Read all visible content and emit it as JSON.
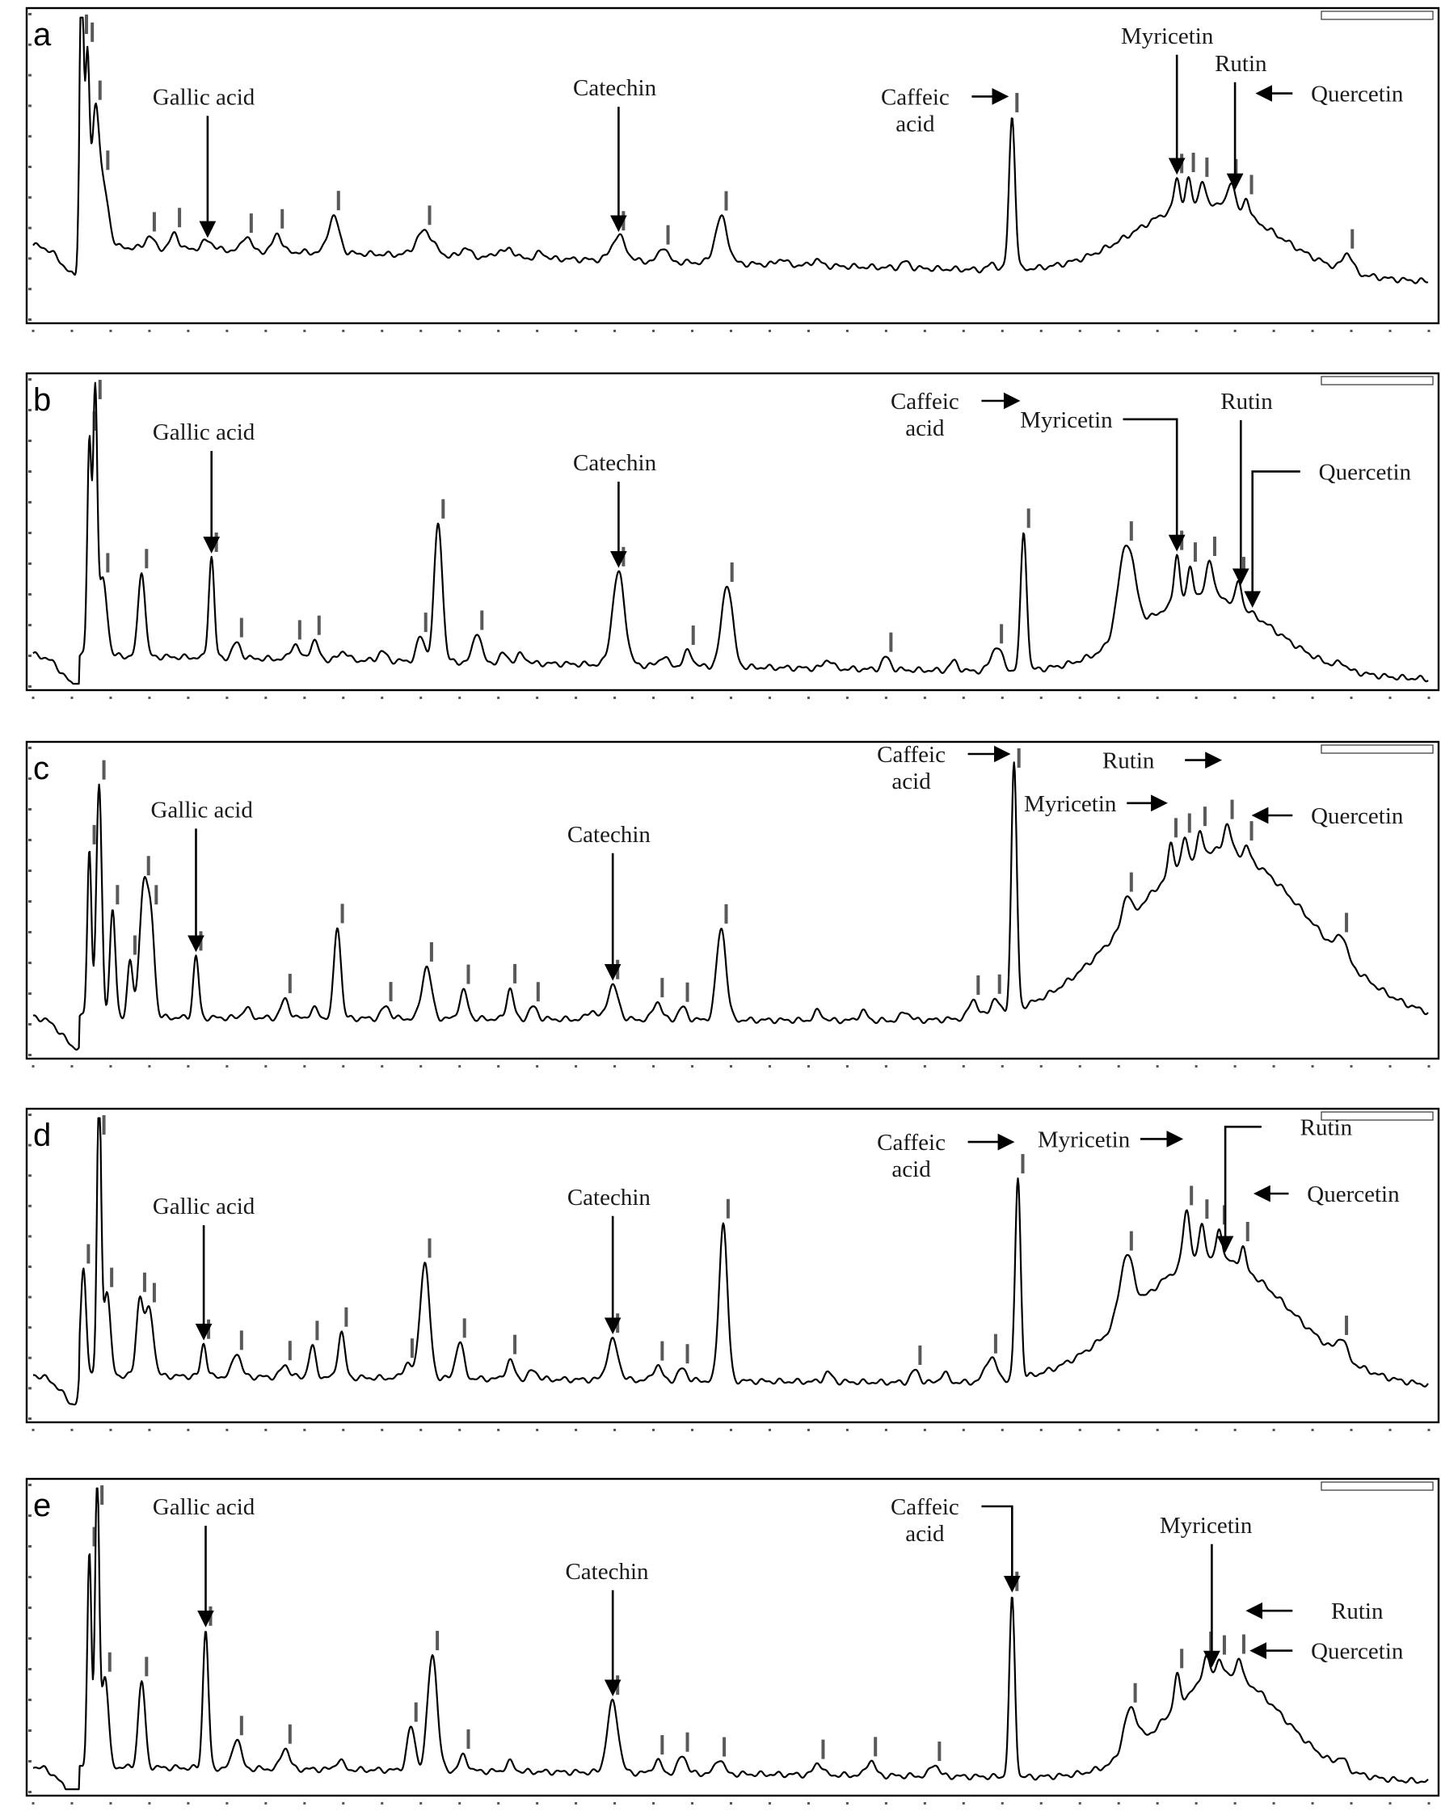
{
  "chart_data": [
    {
      "type": "line",
      "panel": "a",
      "xlim": [
        0,
        72
      ],
      "compounds": [
        {
          "name": "Gallic acid",
          "rt": 9.0,
          "label": [
            "Gallic acid"
          ],
          "lx": 8.8,
          "ly": 0.3,
          "dir": "down"
        },
        {
          "name": "Catechin",
          "rt": 30.2,
          "label": [
            "Catechin"
          ],
          "lx": 30.0,
          "ly": 0.27,
          "dir": "down"
        },
        {
          "name": "Caffeic acid",
          "rt": 50.5,
          "label": [
            "Caffeic",
            "acid"
          ],
          "lx": 45.5,
          "ly": 0.3,
          "dir": "right"
        },
        {
          "name": "Myricetin",
          "rt": 59.0,
          "label": [
            "Myricetin"
          ],
          "lx": 58.5,
          "ly": 0.1,
          "dir": "down"
        },
        {
          "name": "Rutin",
          "rt": 62.0,
          "label": [
            "Rutin"
          ],
          "lx": 62.3,
          "ly": 0.19,
          "dir": "down"
        },
        {
          "name": "Quercetin",
          "rt": 62.8,
          "label": [
            "Quercetin"
          ],
          "lx": 68.3,
          "ly": 0.29,
          "dir": "left"
        }
      ],
      "peaks": [
        {
          "t": 2.5,
          "h": 0.92,
          "w": 0.15
        },
        {
          "t": 2.8,
          "h": 0.6,
          "w": 0.15
        },
        {
          "t": 3.2,
          "h": 0.4,
          "w": 0.25
        },
        {
          "t": 3.6,
          "h": 0.2,
          "w": 0.4
        },
        {
          "t": 6.0,
          "h": 0.04,
          "w": 0.3
        },
        {
          "t": 7.3,
          "h": 0.05,
          "w": 0.3
        },
        {
          "t": 9.0,
          "h": 0.03,
          "w": 0.4
        },
        {
          "t": 11.0,
          "h": 0.05,
          "w": 0.3
        },
        {
          "t": 12.6,
          "h": 0.06,
          "w": 0.3
        },
        {
          "t": 15.5,
          "h": 0.12,
          "w": 0.4
        },
        {
          "t": 20.2,
          "h": 0.08,
          "w": 0.6
        },
        {
          "t": 22.3,
          "h": 0.03,
          "w": 0.3
        },
        {
          "t": 24.0,
          "h": 0.02,
          "w": 0.3
        },
        {
          "t": 24.6,
          "h": 0.03,
          "w": 0.3
        },
        {
          "t": 26.2,
          "h": 0.02,
          "w": 0.3
        },
        {
          "t": 30.2,
          "h": 0.08,
          "w": 0.5
        },
        {
          "t": 32.5,
          "h": 0.05,
          "w": 0.3
        },
        {
          "t": 35.5,
          "h": 0.15,
          "w": 0.45
        },
        {
          "t": 38.6,
          "h": 0.02,
          "w": 0.3
        },
        {
          "t": 40.4,
          "h": 0.02,
          "w": 0.3
        },
        {
          "t": 45.0,
          "h": 0.02,
          "w": 0.3
        },
        {
          "t": 49.5,
          "h": 0.02,
          "w": 0.3
        },
        {
          "t": 50.5,
          "h": 0.5,
          "w": 0.22
        },
        {
          "t": 59.0,
          "h": 0.1,
          "w": 0.2
        },
        {
          "t": 59.6,
          "h": 0.08,
          "w": 0.2
        },
        {
          "t": 60.3,
          "h": 0.07,
          "w": 0.2
        },
        {
          "t": 61.8,
          "h": 0.09,
          "w": 0.25
        },
        {
          "t": 62.6,
          "h": 0.06,
          "w": 0.2
        },
        {
          "t": 67.8,
          "h": 0.06,
          "w": 0.35
        }
      ],
      "hump": {
        "center": 60.5,
        "height": 0.24,
        "width": 5.0
      },
      "drift": {
        "start": 0.24,
        "end": 0.12
      }
    },
    {
      "type": "line",
      "panel": "b",
      "xlim": [
        0,
        72
      ],
      "compounds": [
        {
          "name": "Gallic acid",
          "rt": 9.2,
          "label": [
            "Gallic acid"
          ],
          "lx": 8.8,
          "ly": 0.2,
          "dir": "down"
        },
        {
          "name": "Catechin",
          "rt": 30.2,
          "label": [
            "Catechin"
          ],
          "lx": 30.0,
          "ly": 0.3,
          "dir": "down"
        },
        {
          "name": "Caffeic acid",
          "rt": 51.1,
          "label": [
            "Caffeic",
            "acid"
          ],
          "lx": 46.0,
          "ly": 0.1,
          "dir": "right"
        },
        {
          "name": "Myricetin",
          "rt": 59.0,
          "label": [
            "Myricetin"
          ],
          "lx": 53.3,
          "ly": 0.16,
          "dir": "hook"
        },
        {
          "name": "Rutin",
          "rt": 62.3,
          "label": [
            "Rutin"
          ],
          "lx": 62.6,
          "ly": 0.1,
          "dir": "down"
        },
        {
          "name": "Quercetin",
          "rt": 62.9,
          "label": [
            "Quercetin"
          ],
          "lx": 68.7,
          "ly": 0.33,
          "dir": "hook"
        }
      ],
      "peaks": [
        {
          "t": 2.9,
          "h": 0.7,
          "w": 0.15
        },
        {
          "t": 3.2,
          "h": 0.85,
          "w": 0.15
        },
        {
          "t": 3.6,
          "h": 0.25,
          "w": 0.3
        },
        {
          "t": 5.6,
          "h": 0.28,
          "w": 0.25
        },
        {
          "t": 9.2,
          "h": 0.33,
          "w": 0.2
        },
        {
          "t": 10.5,
          "h": 0.05,
          "w": 0.3
        },
        {
          "t": 13.5,
          "h": 0.05,
          "w": 0.3
        },
        {
          "t": 14.5,
          "h": 0.06,
          "w": 0.3
        },
        {
          "t": 16.0,
          "h": 0.03,
          "w": 0.3
        },
        {
          "t": 18.0,
          "h": 0.03,
          "w": 0.3
        },
        {
          "t": 20.0,
          "h": 0.08,
          "w": 0.3
        },
        {
          "t": 20.9,
          "h": 0.45,
          "w": 0.3
        },
        {
          "t": 22.9,
          "h": 0.1,
          "w": 0.3
        },
        {
          "t": 24.3,
          "h": 0.03,
          "w": 0.3
        },
        {
          "t": 25.2,
          "h": 0.03,
          "w": 0.3
        },
        {
          "t": 30.2,
          "h": 0.3,
          "w": 0.45
        },
        {
          "t": 32.5,
          "h": 0.03,
          "w": 0.3
        },
        {
          "t": 33.8,
          "h": 0.05,
          "w": 0.3
        },
        {
          "t": 35.8,
          "h": 0.27,
          "w": 0.4
        },
        {
          "t": 41.0,
          "h": 0.03,
          "w": 0.3
        },
        {
          "t": 44.0,
          "h": 0.04,
          "w": 0.3
        },
        {
          "t": 47.5,
          "h": 0.03,
          "w": 0.3
        },
        {
          "t": 49.7,
          "h": 0.08,
          "w": 0.4
        },
        {
          "t": 51.1,
          "h": 0.45,
          "w": 0.22
        },
        {
          "t": 56.4,
          "h": 0.3,
          "w": 0.6
        },
        {
          "t": 59.0,
          "h": 0.16,
          "w": 0.2
        },
        {
          "t": 59.7,
          "h": 0.1,
          "w": 0.2
        },
        {
          "t": 60.7,
          "h": 0.12,
          "w": 0.25
        },
        {
          "t": 62.2,
          "h": 0.08,
          "w": 0.2
        },
        {
          "t": 67.5,
          "h": 0.02,
          "w": 0.3
        }
      ],
      "hump": {
        "center": 60.5,
        "height": 0.26,
        "width": 4.8
      },
      "drift": {
        "start": 0.1,
        "end": 0.02
      }
    },
    {
      "type": "line",
      "panel": "c",
      "xlim": [
        0,
        72
      ],
      "compounds": [
        {
          "name": "Gallic acid",
          "rt": 8.4,
          "label": [
            "Gallic acid"
          ],
          "lx": 8.7,
          "ly": 0.23,
          "dir": "down"
        },
        {
          "name": "Catechin",
          "rt": 29.9,
          "label": [
            "Catechin"
          ],
          "lx": 29.7,
          "ly": 0.31,
          "dir": "down"
        },
        {
          "name": "Caffeic acid",
          "rt": 50.6,
          "label": [
            "Caffeic",
            "acid"
          ],
          "lx": 45.3,
          "ly": 0.05,
          "dir": "right"
        },
        {
          "name": "Myricetin",
          "rt": 58.7,
          "label": [
            "Myricetin"
          ],
          "lx": 53.5,
          "ly": 0.21,
          "dir": "right"
        },
        {
          "name": "Rutin",
          "rt": 61.5,
          "label": [
            "Rutin"
          ],
          "lx": 56.5,
          "ly": 0.07,
          "dir": "right"
        },
        {
          "name": "Quercetin",
          "rt": 62.6,
          "label": [
            "Quercetin"
          ],
          "lx": 68.3,
          "ly": 0.25,
          "dir": "left"
        }
      ],
      "peaks": [
        {
          "t": 2.9,
          "h": 0.55,
          "w": 0.15
        },
        {
          "t": 3.4,
          "h": 0.75,
          "w": 0.2
        },
        {
          "t": 4.1,
          "h": 0.35,
          "w": 0.2
        },
        {
          "t": 5.0,
          "h": 0.18,
          "w": 0.2
        },
        {
          "t": 5.7,
          "h": 0.43,
          "w": 0.3
        },
        {
          "t": 6.1,
          "h": 0.28,
          "w": 0.25
        },
        {
          "t": 8.4,
          "h": 0.2,
          "w": 0.2
        },
        {
          "t": 11.0,
          "h": 0.03,
          "w": 0.3
        },
        {
          "t": 13.0,
          "h": 0.06,
          "w": 0.3
        },
        {
          "t": 14.5,
          "h": 0.03,
          "w": 0.3
        },
        {
          "t": 15.7,
          "h": 0.3,
          "w": 0.25
        },
        {
          "t": 18.2,
          "h": 0.04,
          "w": 0.3
        },
        {
          "t": 20.3,
          "h": 0.17,
          "w": 0.35
        },
        {
          "t": 22.2,
          "h": 0.09,
          "w": 0.3
        },
        {
          "t": 24.6,
          "h": 0.1,
          "w": 0.25
        },
        {
          "t": 25.8,
          "h": 0.04,
          "w": 0.3
        },
        {
          "t": 28.8,
          "h": 0.03,
          "w": 0.3
        },
        {
          "t": 29.9,
          "h": 0.11,
          "w": 0.4
        },
        {
          "t": 32.2,
          "h": 0.06,
          "w": 0.3
        },
        {
          "t": 33.5,
          "h": 0.04,
          "w": 0.3
        },
        {
          "t": 35.5,
          "h": 0.3,
          "w": 0.35
        },
        {
          "t": 40.5,
          "h": 0.03,
          "w": 0.3
        },
        {
          "t": 42.8,
          "h": 0.03,
          "w": 0.3
        },
        {
          "t": 45.0,
          "h": 0.03,
          "w": 0.3
        },
        {
          "t": 48.5,
          "h": 0.06,
          "w": 0.3
        },
        {
          "t": 49.6,
          "h": 0.05,
          "w": 0.3
        },
        {
          "t": 50.6,
          "h": 0.8,
          "w": 0.2
        },
        {
          "t": 56.4,
          "h": 0.09,
          "w": 0.3
        },
        {
          "t": 58.7,
          "h": 0.1,
          "w": 0.2
        },
        {
          "t": 59.4,
          "h": 0.08,
          "w": 0.2
        },
        {
          "t": 60.2,
          "h": 0.07,
          "w": 0.2
        },
        {
          "t": 61.6,
          "h": 0.09,
          "w": 0.25
        },
        {
          "t": 62.6,
          "h": 0.04,
          "w": 0.2
        },
        {
          "t": 67.5,
          "h": 0.07,
          "w": 0.35
        }
      ],
      "hump": {
        "center": 61.2,
        "height": 0.56,
        "width": 6.5
      },
      "drift": {
        "start": 0.12,
        "end": 0.1
      }
    },
    {
      "type": "line",
      "panel": "d",
      "xlim": [
        0,
        72
      ],
      "compounds": [
        {
          "name": "Gallic acid",
          "rt": 8.8,
          "label": [
            "Gallic acid"
          ],
          "lx": 8.8,
          "ly": 0.33,
          "dir": "down"
        },
        {
          "name": "Catechin",
          "rt": 29.9,
          "label": [
            "Catechin"
          ],
          "lx": 29.7,
          "ly": 0.3,
          "dir": "down"
        },
        {
          "name": "Caffeic acid",
          "rt": 50.8,
          "label": [
            "Caffeic",
            "acid"
          ],
          "lx": 45.3,
          "ly": 0.12,
          "dir": "right"
        },
        {
          "name": "Myricetin",
          "rt": 59.5,
          "label": [
            "Myricetin"
          ],
          "lx": 54.2,
          "ly": 0.11,
          "dir": "right"
        },
        {
          "name": "Rutin",
          "rt": 61.5,
          "label": [
            "Rutin"
          ],
          "lx": 66.7,
          "ly": 0.07,
          "dir": "hook"
        },
        {
          "name": "Quercetin",
          "rt": 62.7,
          "label": [
            "Quercetin"
          ],
          "lx": 68.1,
          "ly": 0.29,
          "dir": "left"
        }
      ],
      "peaks": [
        {
          "t": 2.6,
          "h": 0.35,
          "w": 0.2
        },
        {
          "t": 3.4,
          "h": 0.95,
          "w": 0.15
        },
        {
          "t": 3.8,
          "h": 0.28,
          "w": 0.25
        },
        {
          "t": 5.5,
          "h": 0.25,
          "w": 0.25
        },
        {
          "t": 6.0,
          "h": 0.22,
          "w": 0.3
        },
        {
          "t": 8.8,
          "h": 0.11,
          "w": 0.2
        },
        {
          "t": 10.5,
          "h": 0.08,
          "w": 0.3
        },
        {
          "t": 13.0,
          "h": 0.04,
          "w": 0.3
        },
        {
          "t": 14.4,
          "h": 0.1,
          "w": 0.25
        },
        {
          "t": 15.9,
          "h": 0.15,
          "w": 0.25
        },
        {
          "t": 19.3,
          "h": 0.05,
          "w": 0.3
        },
        {
          "t": 20.2,
          "h": 0.38,
          "w": 0.35
        },
        {
          "t": 22.0,
          "h": 0.12,
          "w": 0.3
        },
        {
          "t": 24.6,
          "h": 0.06,
          "w": 0.3
        },
        {
          "t": 25.8,
          "h": 0.03,
          "w": 0.3
        },
        {
          "t": 29.9,
          "h": 0.13,
          "w": 0.4
        },
        {
          "t": 32.2,
          "h": 0.05,
          "w": 0.3
        },
        {
          "t": 33.5,
          "h": 0.04,
          "w": 0.3
        },
        {
          "t": 35.6,
          "h": 0.52,
          "w": 0.3
        },
        {
          "t": 41.0,
          "h": 0.03,
          "w": 0.3
        },
        {
          "t": 45.5,
          "h": 0.04,
          "w": 0.3
        },
        {
          "t": 47.0,
          "h": 0.03,
          "w": 0.3
        },
        {
          "t": 49.4,
          "h": 0.08,
          "w": 0.4
        },
        {
          "t": 50.8,
          "h": 0.66,
          "w": 0.2
        },
        {
          "t": 56.4,
          "h": 0.2,
          "w": 0.5
        },
        {
          "t": 59.5,
          "h": 0.18,
          "w": 0.25
        },
        {
          "t": 60.3,
          "h": 0.12,
          "w": 0.2
        },
        {
          "t": 61.2,
          "h": 0.1,
          "w": 0.2
        },
        {
          "t": 62.4,
          "h": 0.07,
          "w": 0.2
        },
        {
          "t": 67.5,
          "h": 0.06,
          "w": 0.35
        }
      ],
      "hump": {
        "center": 60.8,
        "height": 0.42,
        "width": 5.6
      },
      "drift": {
        "start": 0.14,
        "end": 0.1
      }
    },
    {
      "type": "line",
      "panel": "e",
      "xlim": [
        0,
        72
      ],
      "compounds": [
        {
          "name": "Gallic acid",
          "rt": 8.9,
          "label": [
            "Gallic acid"
          ],
          "lx": 8.8,
          "ly": 0.1,
          "dir": "down"
        },
        {
          "name": "Catechin",
          "rt": 29.9,
          "label": [
            "Catechin"
          ],
          "lx": 29.6,
          "ly": 0.31,
          "dir": "down"
        },
        {
          "name": "Caffeic acid",
          "rt": 50.5,
          "label": [
            "Caffeic",
            "acid"
          ],
          "lx": 46.0,
          "ly": 0.1,
          "dir": "hook"
        },
        {
          "name": "Myricetin",
          "rt": 60.8,
          "label": [
            "Myricetin"
          ],
          "lx": 60.5,
          "ly": 0.16,
          "dir": "down"
        },
        {
          "name": "Rutin",
          "rt": 62.3,
          "label": [
            "Rutin"
          ],
          "lx": 68.3,
          "ly": 0.44,
          "dir": "left"
        },
        {
          "name": "Quercetin",
          "rt": 62.5,
          "label": [
            "Quercetin"
          ],
          "lx": 68.3,
          "ly": 0.57,
          "dir": "left"
        }
      ],
      "peaks": [
        {
          "t": 2.9,
          "h": 0.7,
          "w": 0.15
        },
        {
          "t": 3.3,
          "h": 0.95,
          "w": 0.15
        },
        {
          "t": 3.7,
          "h": 0.3,
          "w": 0.25
        },
        {
          "t": 5.6,
          "h": 0.28,
          "w": 0.25
        },
        {
          "t": 8.9,
          "h": 0.45,
          "w": 0.2
        },
        {
          "t": 10.5,
          "h": 0.1,
          "w": 0.3
        },
        {
          "t": 13.0,
          "h": 0.07,
          "w": 0.3
        },
        {
          "t": 15.8,
          "h": 0.03,
          "w": 0.3
        },
        {
          "t": 19.5,
          "h": 0.14,
          "w": 0.3
        },
        {
          "t": 20.6,
          "h": 0.38,
          "w": 0.35
        },
        {
          "t": 22.2,
          "h": 0.05,
          "w": 0.3
        },
        {
          "t": 24.6,
          "h": 0.03,
          "w": 0.3
        },
        {
          "t": 29.9,
          "h": 0.23,
          "w": 0.4
        },
        {
          "t": 32.2,
          "h": 0.04,
          "w": 0.3
        },
        {
          "t": 33.5,
          "h": 0.06,
          "w": 0.3
        },
        {
          "t": 35.4,
          "h": 0.05,
          "w": 0.3
        },
        {
          "t": 40.5,
          "h": 0.04,
          "w": 0.3
        },
        {
          "t": 43.2,
          "h": 0.05,
          "w": 0.3
        },
        {
          "t": 46.5,
          "h": 0.04,
          "w": 0.3
        },
        {
          "t": 50.5,
          "h": 0.58,
          "w": 0.2
        },
        {
          "t": 56.6,
          "h": 0.14,
          "w": 0.5
        },
        {
          "t": 59.0,
          "h": 0.1,
          "w": 0.2
        },
        {
          "t": 60.5,
          "h": 0.08,
          "w": 0.25
        },
        {
          "t": 61.2,
          "h": 0.06,
          "w": 0.2
        },
        {
          "t": 62.2,
          "h": 0.07,
          "w": 0.2
        },
        {
          "t": 67.5,
          "h": 0.03,
          "w": 0.35
        }
      ],
      "hump": {
        "center": 61.5,
        "height": 0.34,
        "width": 4.2
      },
      "drift": {
        "start": 0.08,
        "end": 0.03
      }
    }
  ]
}
